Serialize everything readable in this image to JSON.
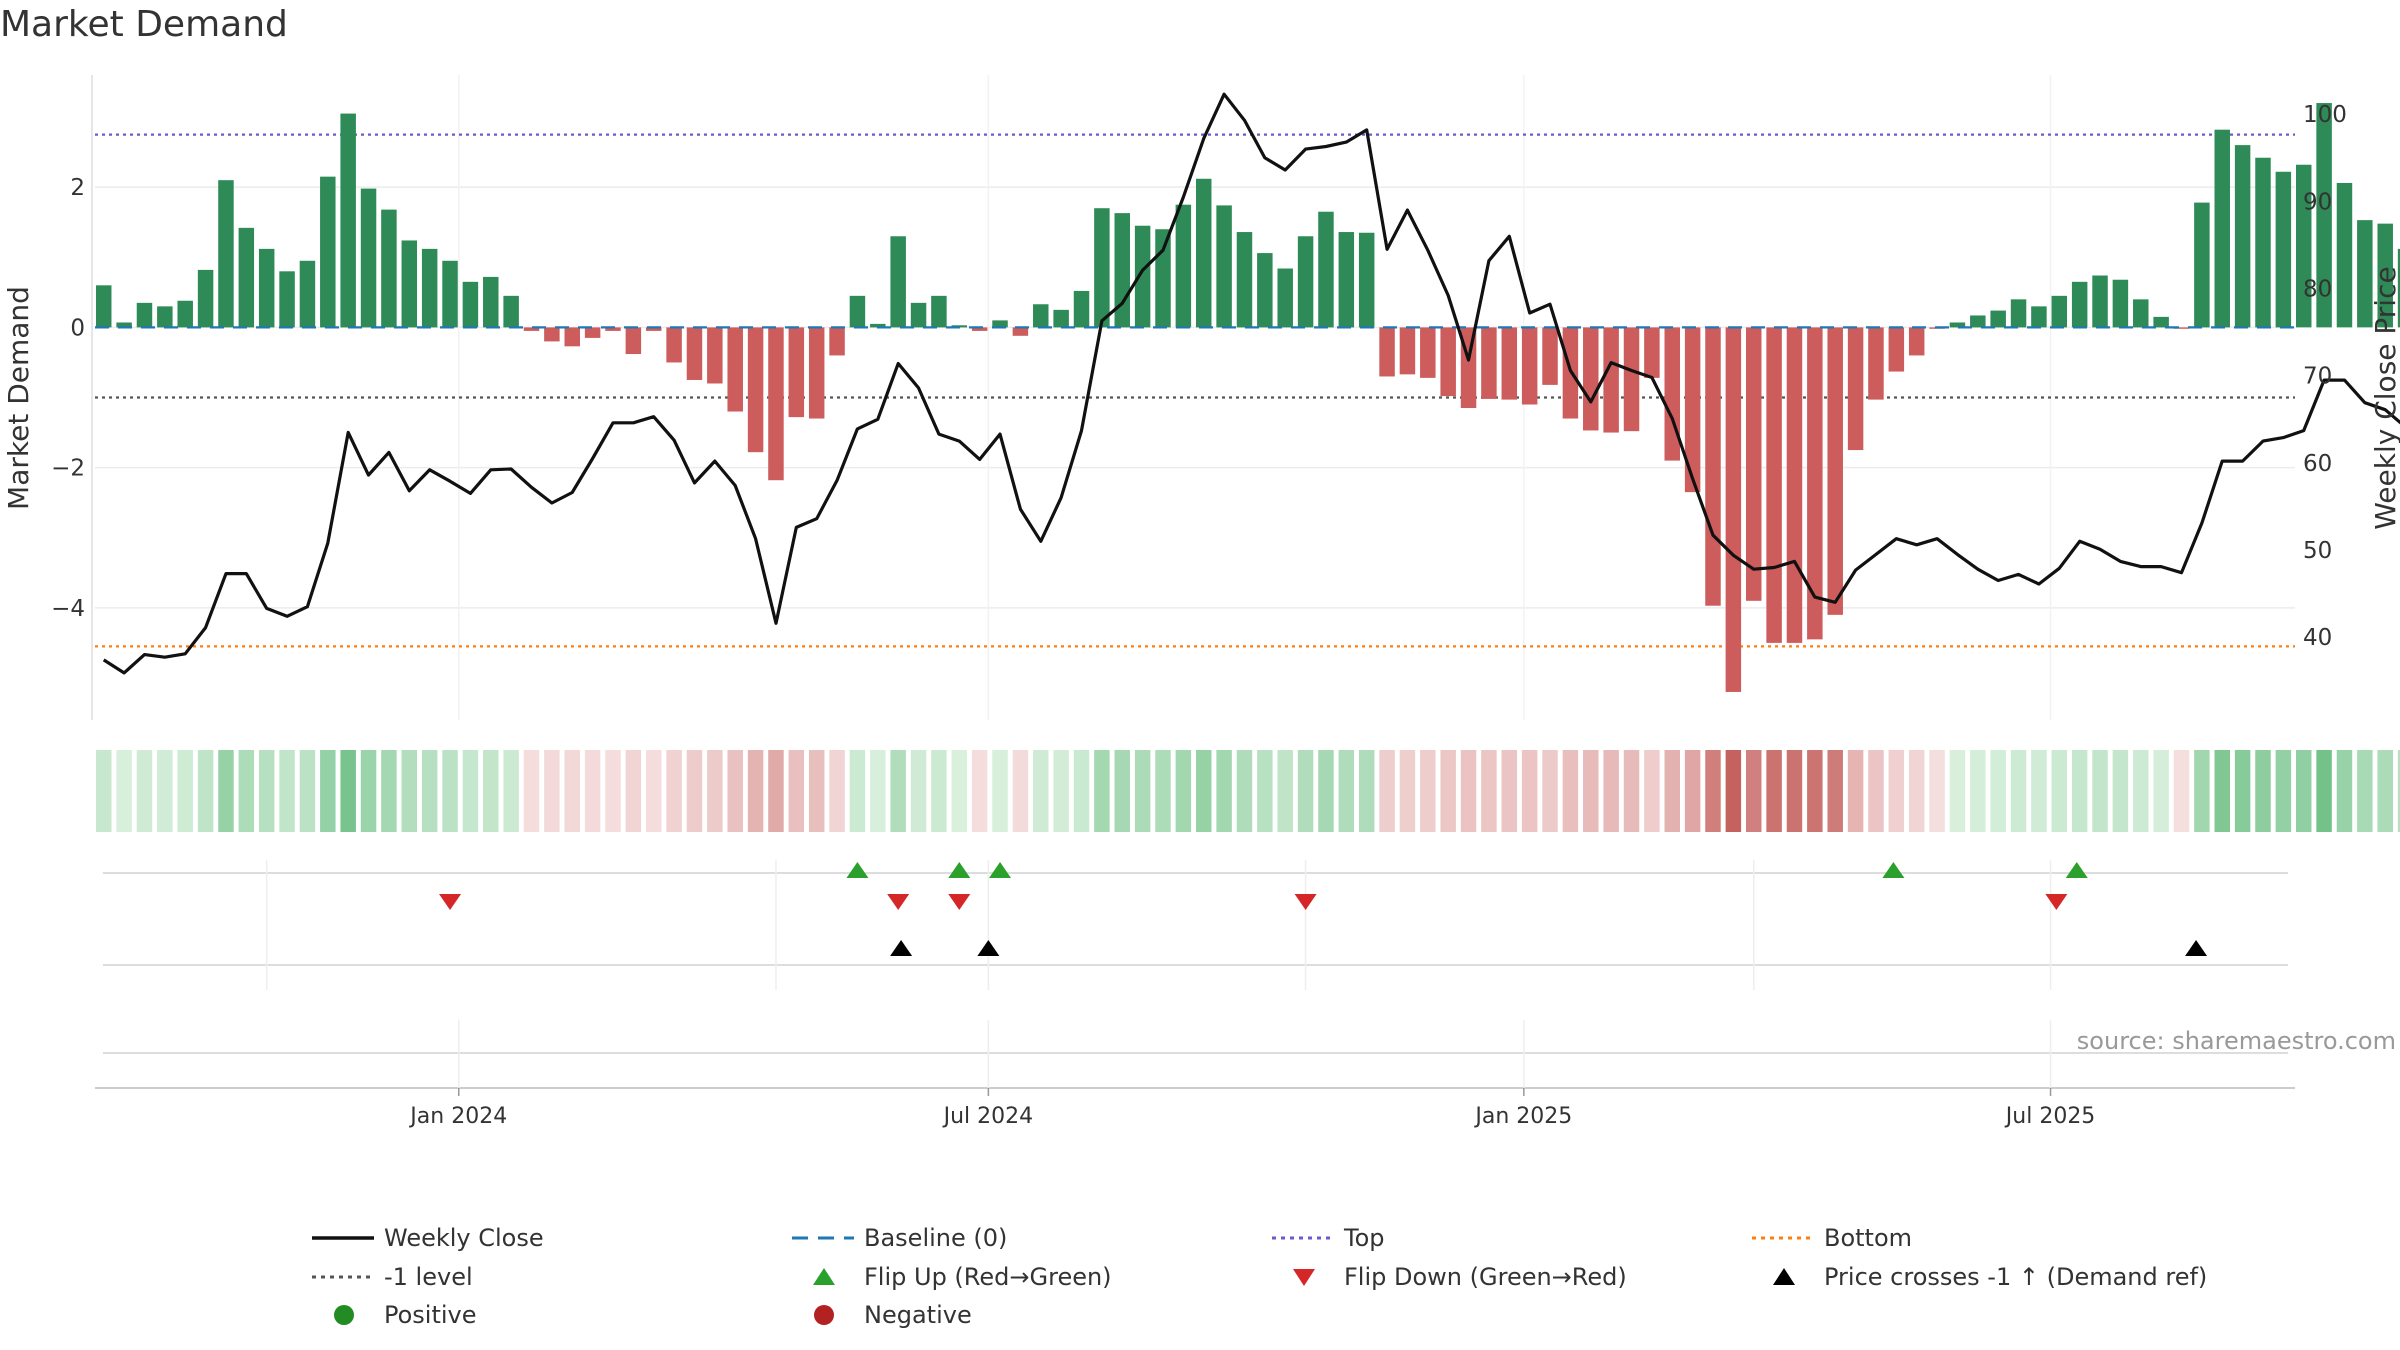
{
  "title": "Market Demand",
  "source": "source: sharemaestro.com",
  "colors": {
    "positive": "#2e8b57",
    "negative": "#cd5c5c",
    "price": "#111111",
    "baseline": "#1f77b4",
    "top": "#6a5acd",
    "bottom": "#ff7f0e",
    "minus1": "#555555",
    "flip_up": "#2ca02c",
    "flip_down": "#d62728",
    "cross": "#000000",
    "positive_dot": "#228b22",
    "negative_dot": "#b22222"
  },
  "chart_data": {
    "type": "bar",
    "title": "Market Demand",
    "ylabel": "Market Demand",
    "y2label": "Weekly Close Price",
    "ylim": [
      -5.6,
      3.6
    ],
    "y2lim": [
      30.5,
      104.5
    ],
    "yticks": [
      -4,
      -2,
      0,
      2
    ],
    "yticklabels": [
      "−4",
      "−2",
      "0",
      "2"
    ],
    "y2ticks": [
      40,
      50,
      60,
      70,
      80,
      90,
      100
    ],
    "y2ticklabels": [
      "40",
      "50",
      "60",
      "70",
      "80",
      "90",
      "100"
    ],
    "x_start": "2023-09-01",
    "x_step_days": 7,
    "xlim": [
      "2023-08-29",
      "2025-09-23"
    ],
    "xticks": [
      "2024-01-01",
      "2024-07-01",
      "2025-01-01",
      "2025-07-01"
    ],
    "xticklabels": [
      "Jan 2024",
      "Jul 2024",
      "Jan 2025",
      "Jul 2025"
    ],
    "grid": true,
    "demand": [
      0.6,
      0.07,
      0.35,
      0.3,
      0.38,
      0.82,
      2.1,
      1.42,
      1.12,
      0.8,
      0.95,
      2.15,
      3.05,
      1.98,
      1.68,
      1.24,
      1.12,
      0.95,
      0.65,
      0.72,
      0.45,
      -0.05,
      -0.2,
      -0.27,
      -0.15,
      -0.05,
      -0.38,
      -0.05,
      -0.5,
      -0.75,
      -0.8,
      -1.2,
      -1.78,
      -2.18,
      -1.28,
      -1.3,
      -0.4,
      0.45,
      0.05,
      1.3,
      0.35,
      0.45,
      0.03,
      -0.05,
      0.1,
      -0.12,
      0.33,
      0.25,
      0.52,
      1.7,
      1.63,
      1.45,
      1.4,
      1.75,
      2.12,
      1.74,
      1.36,
      1.06,
      0.84,
      1.3,
      1.65,
      1.36,
      1.35,
      -0.7,
      -0.67,
      -0.72,
      -0.98,
      -1.15,
      -1.02,
      -1.03,
      -1.1,
      -0.82,
      -1.3,
      -1.47,
      -1.5,
      -1.48,
      -0.72,
      -1.9,
      -2.35,
      -3.97,
      -5.2,
      -3.9,
      -4.5,
      -4.5,
      -4.45,
      -4.1,
      -1.75,
      -1.03,
      -0.63,
      -0.4,
      -0.02,
      0.07,
      0.17,
      0.24,
      0.4,
      0.3,
      0.45,
      0.65,
      0.74,
      0.68,
      0.4,
      0.15,
      -0.02,
      1.78,
      2.82,
      2.6,
      2.42,
      2.22,
      2.32,
      3.2,
      2.06,
      1.53,
      1.48,
      1.12
    ],
    "close": [
      37.4,
      35.9,
      38.0,
      37.7,
      38.1,
      41.1,
      47.3,
      47.3,
      43.3,
      42.4,
      43.5,
      50.8,
      63.5,
      58.6,
      61.2,
      56.8,
      59.2,
      57.9,
      56.5,
      59.2,
      59.3,
      57.2,
      55.4,
      56.6,
      60.5,
      64.6,
      64.6,
      65.3,
      62.6,
      57.7,
      60.2,
      57.4,
      51.3,
      41.6,
      52.6,
      53.6,
      58.0,
      63.9,
      65.0,
      71.4,
      68.6,
      63.3,
      62.5,
      60.4,
      63.3,
      54.7,
      51.0,
      56.0,
      63.7,
      76.3,
      78.3,
      82.1,
      84.4,
      90.5,
      97.2,
      102.3,
      99.3,
      95.0,
      93.6,
      96.0,
      96.3,
      96.8,
      98.2,
      84.5,
      89.0,
      84.4,
      79.2,
      71.8,
      83.2,
      86.0,
      77.2,
      78.2,
      70.6,
      67.0,
      71.5,
      70.6,
      69.8,
      65.1,
      58.2,
      51.7,
      49.4,
      47.8,
      48.0,
      48.7,
      44.6,
      44.0,
      47.7,
      49.5,
      51.3,
      50.6,
      51.3,
      49.5,
      47.8,
      46.5,
      47.2,
      46.1,
      47.9,
      51.0,
      50.1,
      48.7,
      48.1,
      48.1,
      47.4,
      53.1,
      60.2,
      60.2,
      62.5,
      62.9,
      63.7,
      69.5,
      69.5,
      66.9,
      66.1,
      64.1
    ],
    "top_level": 2.75,
    "bottom_level": -4.55,
    "minus1_level": -1.0,
    "baseline": 0,
    "flip_up": [
      "2024-05-17",
      "2024-06-21",
      "2024-07-05",
      "2025-05-08",
      "2025-07-10"
    ],
    "flip_down": [
      "2023-12-29",
      "2024-05-31",
      "2024-06-21",
      "2024-10-18",
      "2025-07-03"
    ],
    "price_cross": [
      "2024-06-01",
      "2024-07-01",
      "2025-08-20"
    ],
    "legend": [
      {
        "label": "Weekly Close",
        "kind": "line-solid",
        "color": "#111111"
      },
      {
        "label": "Baseline (0)",
        "kind": "line-dash",
        "color": "#1f77b4"
      },
      {
        "label": "Top",
        "kind": "line-dot",
        "color": "#6a5acd"
      },
      {
        "label": "Bottom",
        "kind": "line-dot",
        "color": "#ff7f0e"
      },
      {
        "label": "-1 level",
        "kind": "line-dot",
        "color": "#555555"
      },
      {
        "label": "Flip Up (Red→Green)",
        "kind": "tri-up",
        "color": "#2ca02c"
      },
      {
        "label": "Flip Down (Green→Red)",
        "kind": "tri-down",
        "color": "#d62728"
      },
      {
        "label": "Price crosses -1 ↑ (Demand ref)",
        "kind": "tri-up",
        "color": "#000000"
      },
      {
        "label": "Positive",
        "kind": "dot",
        "color": "#228b22"
      },
      {
        "label": "Negative",
        "kind": "dot",
        "color": "#b22222"
      }
    ]
  }
}
